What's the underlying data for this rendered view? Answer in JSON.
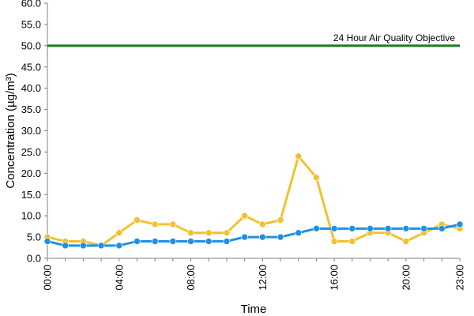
{
  "chart_data": {
    "type": "line",
    "title": "",
    "xlabel": "Time",
    "ylabel": "Concentration (µg/m³)",
    "ylim": [
      0,
      60
    ],
    "yticks": [
      "0.0",
      "5.0",
      "10.0",
      "15.0",
      "20.0",
      "25.0",
      "30.0",
      "35.0",
      "40.0",
      "45.0",
      "50.0",
      "55.0",
      "60.0"
    ],
    "x": [
      0,
      1,
      2,
      3,
      4,
      5,
      6,
      7,
      8,
      9,
      10,
      11,
      12,
      13,
      14,
      15,
      16,
      17,
      18,
      19,
      20,
      21,
      22,
      23
    ],
    "xtick_labels": [
      "00:00",
      "04:00",
      "08:00",
      "12:00",
      "16:00",
      "20:00",
      "23:00"
    ],
    "xtick_hours": [
      0,
      4,
      8,
      12,
      16,
      20,
      23
    ],
    "series": [
      {
        "name": "",
        "color": "#f2c12e",
        "values": [
          5,
          4,
          4,
          3,
          6,
          9,
          8,
          8,
          6,
          6,
          6,
          10,
          8,
          9,
          24,
          19,
          4,
          4,
          6,
          6,
          4,
          6,
          8,
          7
        ]
      },
      {
        "name": "",
        "color": "#1e90e8",
        "values": [
          4,
          3,
          3,
          3,
          3,
          4,
          4,
          4,
          4,
          4,
          4,
          5,
          5,
          5,
          6,
          7,
          7,
          7,
          7,
          7,
          7,
          7,
          7,
          8
        ]
      }
    ],
    "reference_line": {
      "value": 50,
      "label": "24 Hour Air Quality Objective",
      "color": "#1f7a1f"
    },
    "grid": false,
    "legend": "none"
  }
}
